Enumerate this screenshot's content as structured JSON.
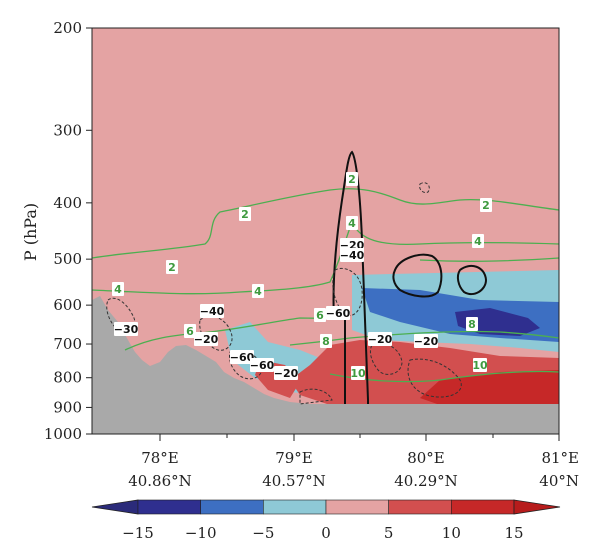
{
  "chart_data": {
    "type": "heatmap",
    "ylabel": "P (hPa)",
    "y_ticks": [
      "200",
      "300",
      "400",
      "500",
      "600",
      "700",
      "800",
      "900",
      "1000"
    ],
    "y_tick_values": [
      200,
      300,
      400,
      500,
      600,
      700,
      800,
      900,
      1000
    ],
    "y_scale": "log",
    "ylim": [
      200,
      1000
    ],
    "x_ticks": [
      {
        "lon": "78°E",
        "lat": "40.86°N"
      },
      {
        "lon": "79°E",
        "lat": "40.57°N"
      },
      {
        "lon": "80°E",
        "lat": "40.29°N"
      },
      {
        "lon": "81°E",
        "lat": "40°N"
      }
    ],
    "colorbar": {
      "ticks": [
        "−15",
        "−10",
        "−5",
        "0",
        "5",
        "10",
        "15"
      ],
      "colors": [
        "#2f2f8f",
        "#3d6fc2",
        "#8ec9d6",
        "#e4a3a3",
        "#d24f4f",
        "#c62828"
      ]
    },
    "green_contour_labels": [
      "2",
      "2",
      "2",
      "2",
      "4",
      "4",
      "4",
      "4",
      "6",
      "6",
      "8",
      "8",
      "10",
      "10"
    ],
    "dashed_contour_labels": [
      "−20",
      "−20",
      "−20",
      "−20",
      "−20",
      "−30",
      "−40",
      "−40",
      "−60",
      "−60",
      "−60"
    ],
    "colors": {
      "background_fill": "#e4a3a3",
      "terrain": "#a9a9a9",
      "green_contour": "#4caf50",
      "black_contour": "#111111"
    }
  }
}
